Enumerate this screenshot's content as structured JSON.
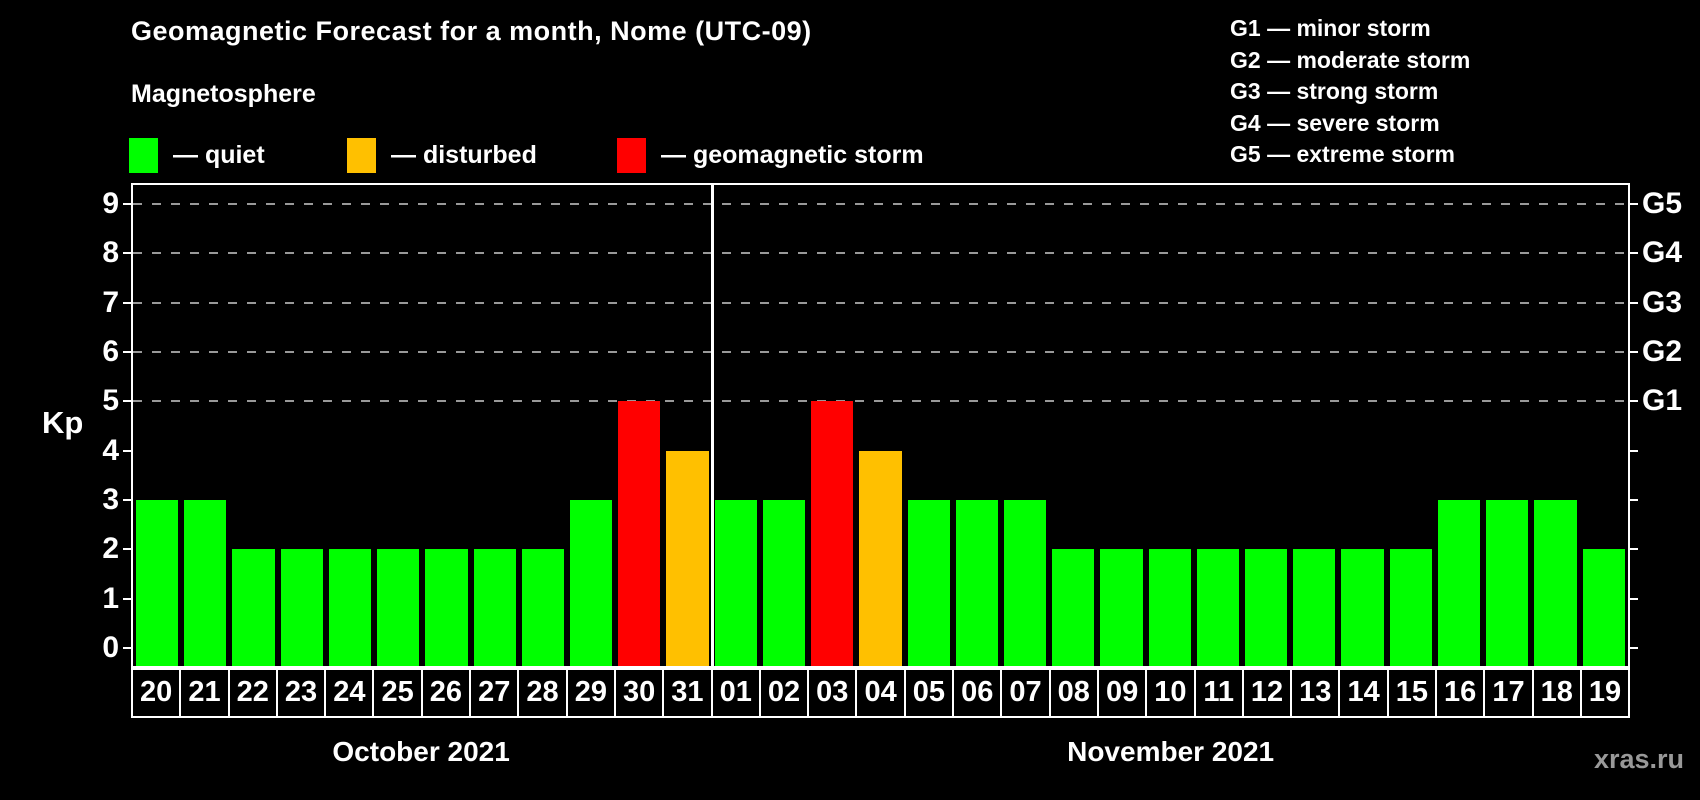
{
  "chart_data": {
    "type": "bar",
    "title": "Geomagnetic Forecast for a month, Nome (UTC-09)",
    "subtitle": "Magnetosphere",
    "ylabel": "Kp",
    "ylim": [
      0,
      9
    ],
    "y_ticks": [
      0,
      1,
      2,
      3,
      4,
      5,
      6,
      7,
      8,
      9
    ],
    "gridlines_at": [
      5,
      6,
      7,
      8,
      9
    ],
    "grid": "dashed-horizontal",
    "legend_position": "top-left",
    "colors": {
      "quiet": "#00ff00",
      "disturbed": "#ffc000",
      "storm": "#ff0000"
    },
    "legend": [
      {
        "id": "quiet",
        "label": "— quiet",
        "color": "#00ff00"
      },
      {
        "id": "disturbed",
        "label": "— disturbed",
        "color": "#ffc000"
      },
      {
        "id": "storm",
        "label": "— geomagnetic storm",
        "color": "#ff0000"
      }
    ],
    "g_legend": [
      "G1 — minor storm",
      "G2 — moderate storm",
      "G3 — strong storm",
      "G4 — severe storm",
      "G5 — extreme storm"
    ],
    "g_levels": [
      {
        "kp": 5,
        "label": "G1"
      },
      {
        "kp": 6,
        "label": "G2"
      },
      {
        "kp": 7,
        "label": "G3"
      },
      {
        "kp": 8,
        "label": "G4"
      },
      {
        "kp": 9,
        "label": "G5"
      }
    ],
    "months": [
      {
        "label": "October 2021",
        "days": [
          "20",
          "21",
          "22",
          "23",
          "24",
          "25",
          "26",
          "27",
          "28",
          "29",
          "30",
          "31"
        ],
        "values": [
          3,
          3,
          2,
          2,
          2,
          2,
          2,
          2,
          2,
          3,
          5,
          4
        ],
        "status": [
          "quiet",
          "quiet",
          "quiet",
          "quiet",
          "quiet",
          "quiet",
          "quiet",
          "quiet",
          "quiet",
          "quiet",
          "storm",
          "disturbed"
        ]
      },
      {
        "label": "November 2021",
        "days": [
          "01",
          "02",
          "03",
          "04",
          "05",
          "06",
          "07",
          "08",
          "09",
          "10",
          "11",
          "12",
          "13",
          "14",
          "15",
          "16",
          "17",
          "18",
          "19"
        ],
        "values": [
          3,
          3,
          5,
          4,
          3,
          3,
          3,
          2,
          2,
          2,
          2,
          2,
          2,
          2,
          2,
          3,
          3,
          3,
          2
        ],
        "status": [
          "quiet",
          "quiet",
          "storm",
          "disturbed",
          "quiet",
          "quiet",
          "quiet",
          "quiet",
          "quiet",
          "quiet",
          "quiet",
          "quiet",
          "quiet",
          "quiet",
          "quiet",
          "quiet",
          "quiet",
          "quiet",
          "quiet"
        ]
      }
    ],
    "watermark": "xras.ru"
  }
}
